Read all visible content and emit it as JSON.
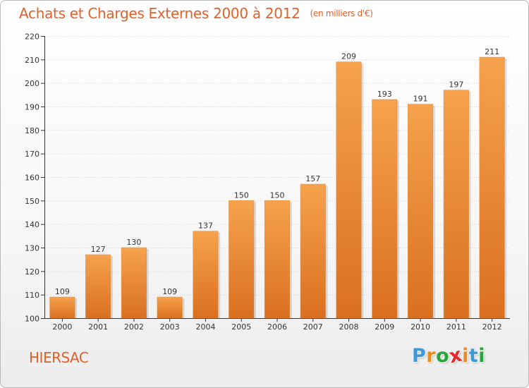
{
  "header": {
    "title": "Achats et Charges Externes 2000 à 2012",
    "subtitle": "(en milliers d'€)"
  },
  "footer": {
    "commune": "HIERSAC",
    "logo_letters": [
      "P",
      "r",
      "o",
      "x",
      "i",
      "t",
      "i"
    ],
    "logo_colors": [
      "#3f98d6",
      "#f08a1d",
      "#2aa43b",
      "#e32b2b",
      "#f08a1d",
      "#3f98d6",
      "#2aa43b"
    ]
  },
  "colors": {
    "title": "#e2602a",
    "bar_light": "#f6a24d",
    "bar_dark": "#d97020",
    "grid": "#d4d4d4",
    "axis": "#333333"
  },
  "chart_data": {
    "type": "bar",
    "categories": [
      "2000",
      "2001",
      "2002",
      "2003",
      "2004",
      "2005",
      "2006",
      "2007",
      "2008",
      "2009",
      "2010",
      "2011",
      "2012"
    ],
    "values": [
      109,
      127,
      130,
      109,
      137,
      150,
      150,
      157,
      209,
      193,
      191,
      197,
      211
    ],
    "data_labels": [
      "109",
      "127",
      "130",
      "109",
      "137",
      "150",
      "150",
      "157",
      "209",
      "193",
      "191",
      "197",
      "211"
    ],
    "yticks": [
      "100",
      "110",
      "120",
      "130",
      "140",
      "150",
      "160",
      "170",
      "180",
      "190",
      "200",
      "210",
      "220"
    ],
    "ylim": [
      100,
      220
    ],
    "xlabel": "",
    "ylabel": "",
    "grid": true,
    "legend": "none"
  }
}
